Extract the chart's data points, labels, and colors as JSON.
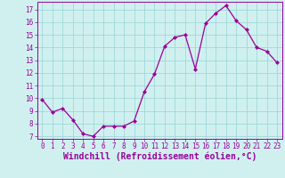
{
  "x": [
    0,
    1,
    2,
    3,
    4,
    5,
    6,
    7,
    8,
    9,
    10,
    11,
    12,
    13,
    14,
    15,
    16,
    17,
    18,
    19,
    20,
    21,
    22,
    23
  ],
  "y": [
    9.9,
    8.9,
    9.2,
    8.3,
    7.2,
    7.0,
    7.8,
    7.8,
    7.8,
    8.2,
    10.5,
    11.9,
    14.1,
    14.8,
    15.0,
    12.3,
    15.9,
    16.7,
    17.3,
    16.1,
    15.4,
    14.0,
    13.7,
    12.8
  ],
  "line_color": "#990099",
  "marker": "D",
  "marker_size": 2,
  "bg_color": "#d0f0f0",
  "grid_color": "#a0d8d8",
  "xlabel": "Windchill (Refroidissement éolien,°C)",
  "ylim": [
    6.8,
    17.6
  ],
  "xlim": [
    -0.5,
    23.5
  ],
  "yticks": [
    7,
    8,
    9,
    10,
    11,
    12,
    13,
    14,
    15,
    16,
    17
  ],
  "xticks": [
    0,
    1,
    2,
    3,
    4,
    5,
    6,
    7,
    8,
    9,
    10,
    11,
    12,
    13,
    14,
    15,
    16,
    17,
    18,
    19,
    20,
    21,
    22,
    23
  ],
  "tick_label_fontsize": 5.5,
  "xlabel_fontsize": 7.0
}
